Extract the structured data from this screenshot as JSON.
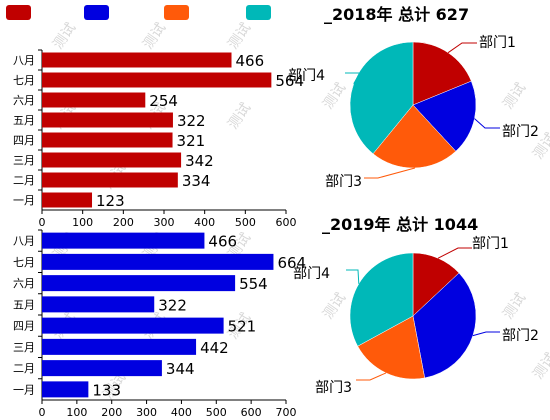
{
  "legend": {
    "items": [
      {
        "color": "#c00000"
      },
      {
        "color": "#0000e0"
      },
      {
        "color": "#ff5a0a"
      },
      {
        "color": "#00b8b8"
      }
    ]
  },
  "watermark": "测试",
  "chart_data": [
    {
      "type": "bar",
      "orientation": "horizontal",
      "categories": [
        "一月",
        "二月",
        "三月",
        "四月",
        "五月",
        "六月",
        "七月",
        "八月"
      ],
      "values": [
        123,
        334,
        342,
        321,
        322,
        254,
        564,
        466
      ],
      "color": "#c00000",
      "xlim": [
        0,
        600
      ],
      "xticks": [
        0,
        100,
        200,
        300,
        400,
        500,
        600
      ]
    },
    {
      "type": "pie",
      "title": "_2018年 总计 627",
      "slices": [
        {
          "label": "部门1",
          "value": 118,
          "color": "#c00000"
        },
        {
          "label": "部门2",
          "value": 121,
          "color": "#0000e0"
        },
        {
          "label": "部门3",
          "value": 143,
          "color": "#ff5a0a"
        },
        {
          "label": "部门4",
          "value": 245,
          "color": "#00b8b8"
        }
      ]
    },
    {
      "type": "bar",
      "orientation": "horizontal",
      "categories": [
        "一月",
        "二月",
        "三月",
        "四月",
        "五月",
        "六月",
        "七月",
        "八月"
      ],
      "values": [
        133,
        344,
        442,
        521,
        322,
        554,
        664,
        466
      ],
      "color": "#0000e0",
      "xlim": [
        0,
        700
      ],
      "xticks": [
        0,
        100,
        200,
        300,
        400,
        500,
        600,
        700
      ]
    },
    {
      "type": "pie",
      "title": "_2019年 总计 1044",
      "slices": [
        {
          "label": "部门1",
          "value": 136,
          "color": "#c00000"
        },
        {
          "label": "部门2",
          "value": 355,
          "color": "#0000e0"
        },
        {
          "label": "部门3",
          "value": 209,
          "color": "#ff5a0a"
        },
        {
          "label": "部门4",
          "value": 344,
          "color": "#00b8b8"
        }
      ]
    }
  ]
}
